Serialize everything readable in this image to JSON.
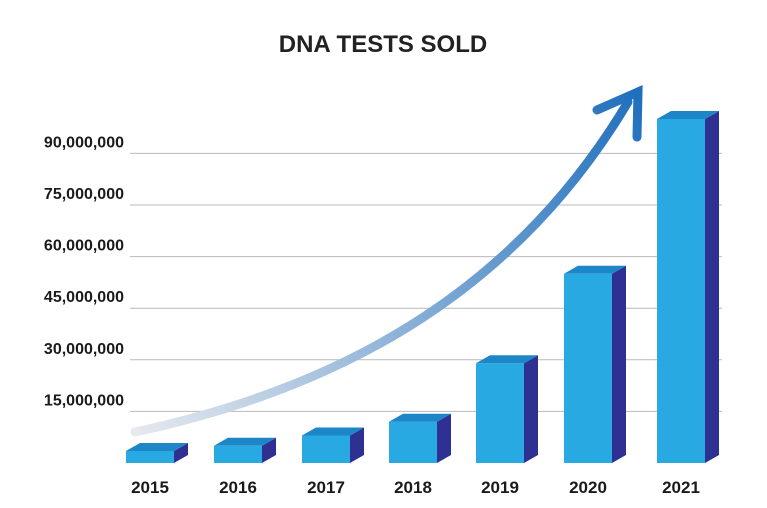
{
  "chart_data": {
    "type": "bar",
    "title": "DNA TESTS SOLD",
    "xlabel": "",
    "ylabel": "",
    "categories": [
      "2015",
      "2016",
      "2017",
      "2018",
      "2019",
      "2020",
      "2021"
    ],
    "values": [
      3500000,
      5000000,
      8000000,
      12000000,
      29000000,
      55000000,
      100000000
    ],
    "yticks": [
      15000000,
      30000000,
      45000000,
      60000000,
      75000000,
      90000000
    ],
    "ytick_labels": [
      "15,000,000",
      "30,000,000",
      "45,000,000",
      "60,000,000",
      "75,000,000",
      "90,000,000"
    ],
    "ylim": [
      0,
      100000000
    ],
    "grid": true,
    "legend": "none",
    "colors": {
      "bar_front": "#28a9e2",
      "bar_side": "#2e3192",
      "bar_top": "#1c86c8",
      "arrow_start": "#e6e9ee",
      "arrow_end": "#1f6fbd"
    }
  }
}
